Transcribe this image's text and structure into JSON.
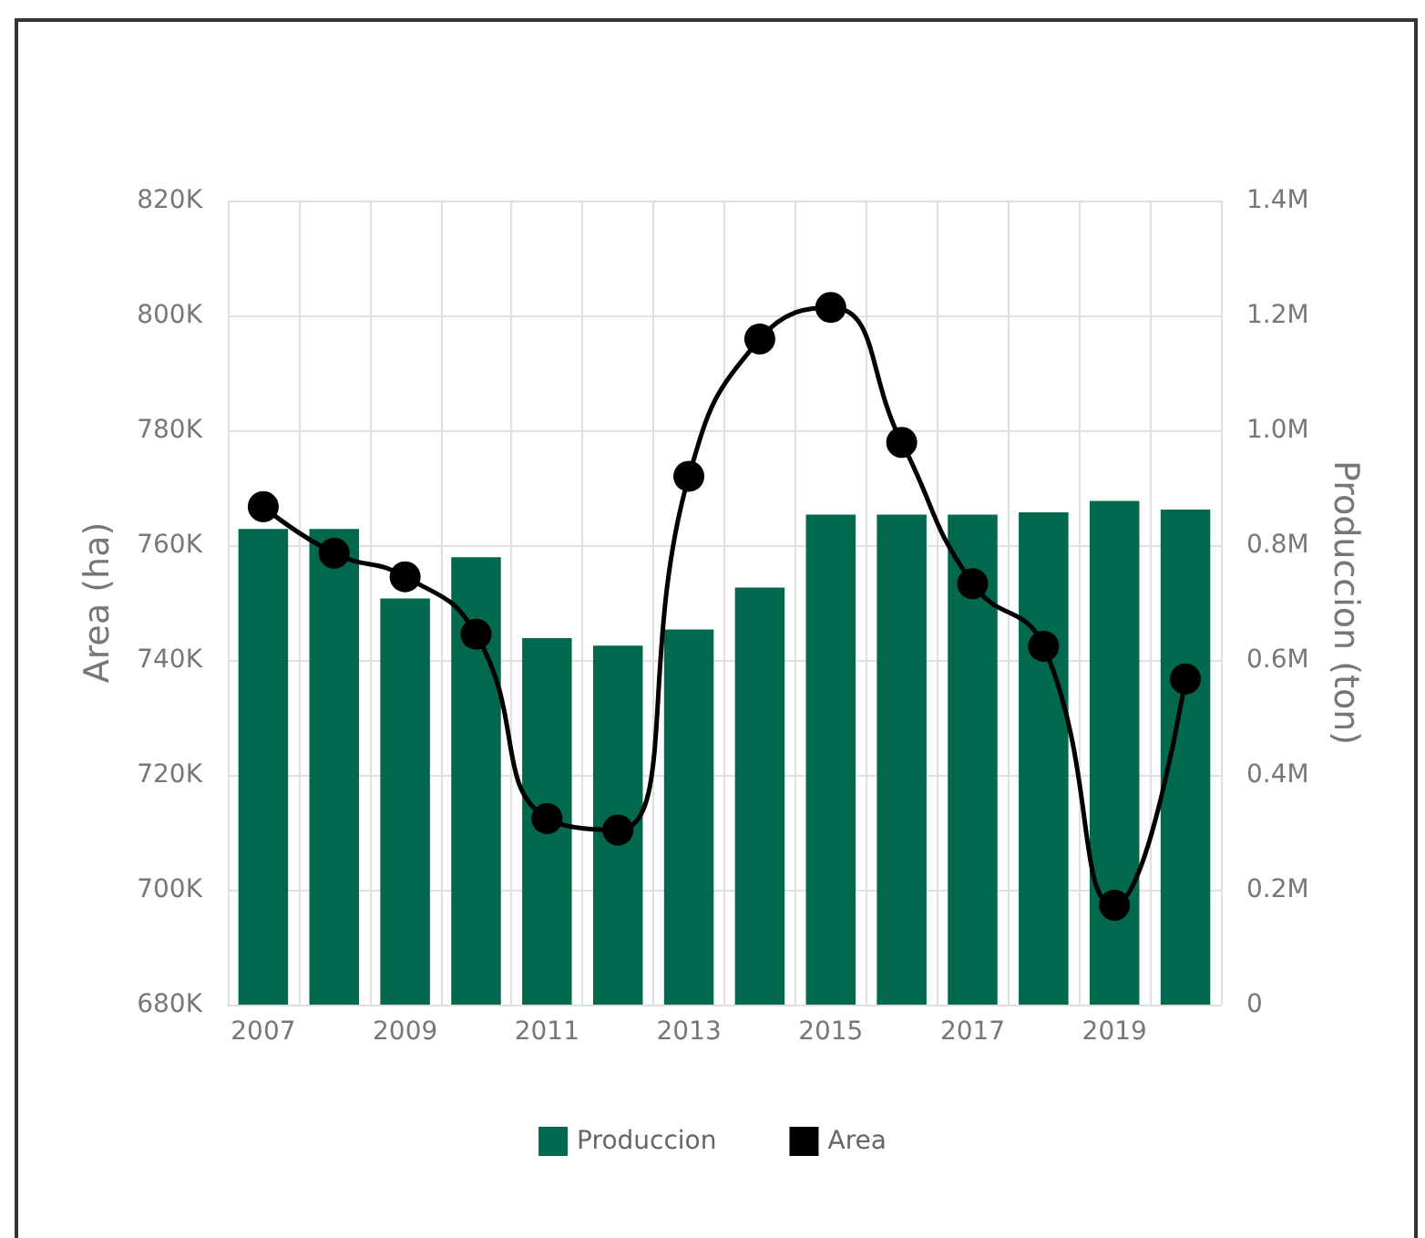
{
  "chart_data": {
    "type": "bar",
    "categories": [
      "2007",
      null,
      "2009",
      null,
      "2011",
      null,
      "2013",
      null,
      "2015",
      null,
      "2017",
      null,
      "2019",
      null
    ],
    "series": [
      {
        "name": "Produccion",
        "axis": "y2",
        "color": "#02694f",
        "values": [
          828000,
          828000,
          707000,
          779000,
          638000,
          625000,
          653000,
          726000,
          853000,
          853000,
          853000,
          857000,
          877000,
          862000
        ]
      },
      {
        "name": "Area",
        "type": "line",
        "color": "#000000",
        "values": [
          766700,
          758600,
          754500,
          744500,
          712400,
          710400,
          772000,
          795900,
          801400,
          777900,
          753300,
          742400,
          697300,
          736700
        ]
      }
    ],
    "ylabel": "Area (ha)",
    "y2label": "Produccion (ton)",
    "ylim": [
      680000,
      820000
    ],
    "yticks": [
      {
        "value": 680000,
        "label": "680K"
      },
      {
        "value": 700000,
        "label": "700K"
      },
      {
        "value": 720000,
        "label": "720K"
      },
      {
        "value": 740000,
        "label": "740K"
      },
      {
        "value": 760000,
        "label": "760K"
      },
      {
        "value": 780000,
        "label": "780K"
      },
      {
        "value": 800000,
        "label": "800K"
      },
      {
        "value": 820000,
        "label": "820K"
      }
    ],
    "y2lim": [
      0,
      1400000
    ],
    "y2ticks": [
      0,
      {
        "value": 200000,
        "label": "0.2M"
      },
      {
        "value": 400000,
        "label": "0.4M"
      },
      {
        "value": 600000,
        "label": "0.6M"
      },
      {
        "value": 800000,
        "label": "0.8M"
      },
      {
        "value": 1000000,
        "label": "1.0M"
      },
      {
        "value": 1200000,
        "label": "1.2M"
      },
      {
        "value": 1400000,
        "label": "1.4M"
      }
    ],
    "grid": true,
    "legend": "bottom",
    "marker": "circle",
    "line_style": "solid"
  }
}
